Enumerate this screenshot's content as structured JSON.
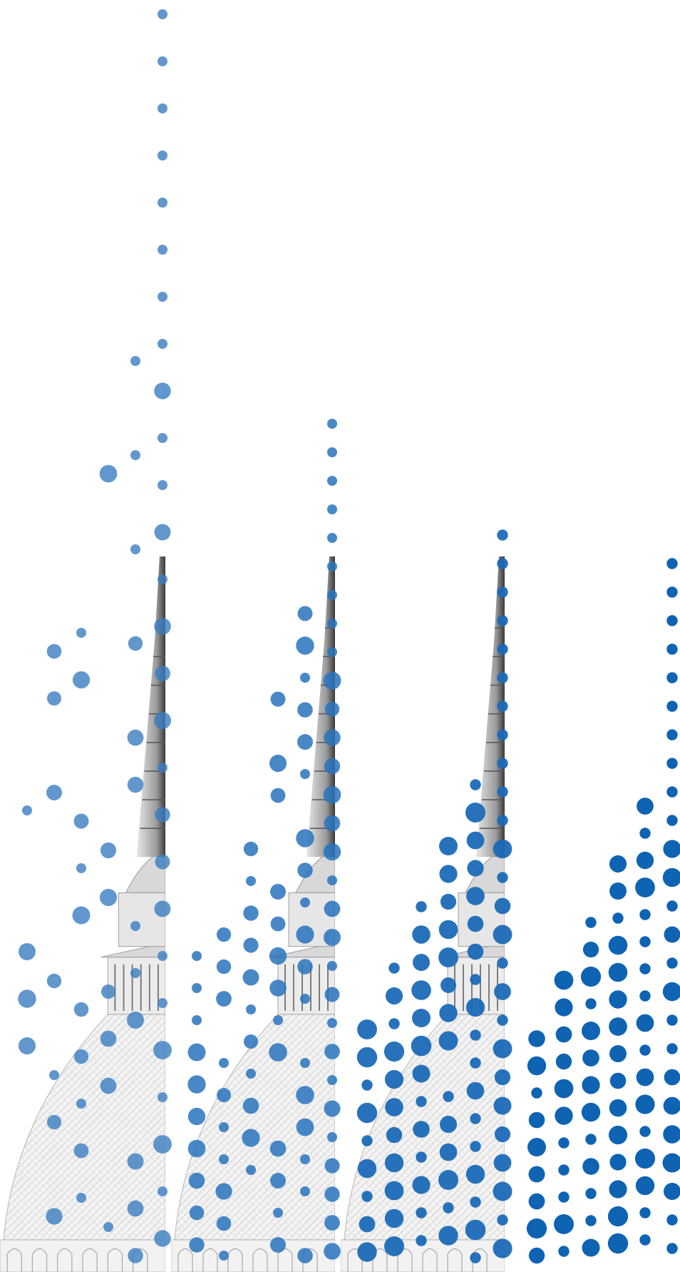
{
  "artwork": {
    "subject": "mole-antonelliana-halftone",
    "dot_colors": [
      "#3a7ec1",
      "#2a74bd",
      "#1c6bb8",
      "#0f63b3"
    ],
    "tower_tone": "#cfcfcf",
    "panels": [
      {
        "name": "panel-1",
        "dot_density": 0.35,
        "dot_opacity": 0.8
      },
      {
        "name": "panel-2",
        "dot_density": 0.55,
        "dot_opacity": 0.85
      },
      {
        "name": "panel-3",
        "dot_density": 0.8,
        "dot_opacity": 0.95
      },
      {
        "name": "panel-4",
        "dot_density": 1.0,
        "dot_opacity": 1.0
      }
    ]
  }
}
